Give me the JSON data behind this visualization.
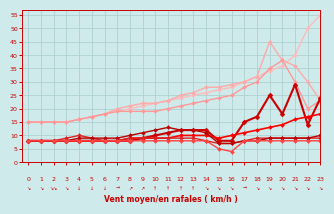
{
  "xlabel": "Vent moyen/en rafales ( km/h )",
  "xlim": [
    -0.5,
    23
  ],
  "ylim": [
    0,
    57
  ],
  "yticks": [
    0,
    5,
    10,
    15,
    20,
    25,
    30,
    35,
    40,
    45,
    50,
    55
  ],
  "xticks": [
    0,
    1,
    2,
    3,
    4,
    5,
    6,
    7,
    8,
    9,
    10,
    11,
    12,
    13,
    14,
    15,
    16,
    17,
    18,
    19,
    20,
    21,
    22,
    23
  ],
  "background_color": "#ceeaea",
  "lines": [
    {
      "comment": "lightest pink - nearly straight diagonal from ~15 to 55",
      "x": [
        0,
        1,
        2,
        3,
        4,
        5,
        6,
        7,
        8,
        9,
        10,
        11,
        12,
        13,
        14,
        15,
        16,
        17,
        18,
        19,
        20,
        21,
        22,
        23
      ],
      "y": [
        15,
        15,
        15,
        15,
        16,
        17,
        18,
        19,
        20,
        21,
        22,
        23,
        24,
        25,
        26,
        27,
        28,
        30,
        32,
        34,
        36,
        40,
        50,
        55
      ],
      "color": "#ffbbbb",
      "lw": 1.0,
      "marker": "D",
      "ms": 2
    },
    {
      "comment": "light pink - diagonal going up to ~45 with peak at 21",
      "x": [
        0,
        1,
        2,
        3,
        4,
        5,
        6,
        7,
        8,
        9,
        10,
        11,
        12,
        13,
        14,
        15,
        16,
        17,
        18,
        19,
        20,
        21,
        22,
        23
      ],
      "y": [
        15,
        15,
        15,
        15,
        16,
        17,
        18,
        20,
        21,
        22,
        22,
        23,
        25,
        26,
        28,
        28,
        29,
        30,
        32,
        45,
        38,
        36,
        30,
        23
      ],
      "color": "#ffaaaa",
      "lw": 1.0,
      "marker": "D",
      "ms": 2
    },
    {
      "comment": "medium pink - up to 38 then back down",
      "x": [
        0,
        1,
        2,
        3,
        4,
        5,
        6,
        7,
        8,
        9,
        10,
        11,
        12,
        13,
        14,
        15,
        16,
        17,
        18,
        19,
        20,
        21,
        22,
        23
      ],
      "y": [
        15,
        15,
        15,
        15,
        16,
        17,
        18,
        19,
        19,
        19,
        19,
        20,
        21,
        22,
        23,
        24,
        25,
        28,
        30,
        35,
        38,
        30,
        20,
        23
      ],
      "color": "#ff9999",
      "lw": 1.0,
      "marker": "D",
      "ms": 2
    },
    {
      "comment": "dark red - main bold line goes up steeply",
      "x": [
        0,
        1,
        2,
        3,
        4,
        5,
        6,
        7,
        8,
        9,
        10,
        11,
        12,
        13,
        14,
        15,
        16,
        17,
        18,
        19,
        20,
        21,
        22,
        23
      ],
      "y": [
        8,
        8,
        8,
        8,
        8,
        8,
        8,
        8,
        8,
        9,
        10,
        11,
        12,
        12,
        12,
        8,
        8,
        15,
        17,
        25,
        18,
        29,
        14,
        24
      ],
      "color": "#cc0000",
      "lw": 1.5,
      "marker": "D",
      "ms": 2.5
    },
    {
      "comment": "red line - nearly flat with slight rise",
      "x": [
        0,
        1,
        2,
        3,
        4,
        5,
        6,
        7,
        8,
        9,
        10,
        11,
        12,
        13,
        14,
        15,
        16,
        17,
        18,
        19,
        20,
        21,
        22,
        23
      ],
      "y": [
        8,
        8,
        8,
        8,
        8,
        8,
        8,
        8,
        9,
        9,
        9,
        9,
        10,
        10,
        10,
        9,
        10,
        11,
        12,
        13,
        14,
        16,
        17,
        18
      ],
      "color": "#ff0000",
      "lw": 1.2,
      "marker": "D",
      "ms": 2
    },
    {
      "comment": "darker red - dips down then up",
      "x": [
        0,
        1,
        2,
        3,
        4,
        5,
        6,
        7,
        8,
        9,
        10,
        11,
        12,
        13,
        14,
        15,
        16,
        17,
        18,
        19,
        20,
        21,
        22,
        23
      ],
      "y": [
        8,
        8,
        8,
        9,
        10,
        9,
        8,
        8,
        9,
        9,
        9,
        9,
        9,
        9,
        8,
        7,
        7,
        8,
        9,
        9,
        9,
        9,
        9,
        9
      ],
      "color": "#dd2222",
      "lw": 1.0,
      "marker": "D",
      "ms": 2
    },
    {
      "comment": "medium red - slight hump",
      "x": [
        0,
        1,
        2,
        3,
        4,
        5,
        6,
        7,
        8,
        9,
        10,
        11,
        12,
        13,
        14,
        15,
        16,
        17,
        18,
        19,
        20,
        21,
        22,
        23
      ],
      "y": [
        8,
        8,
        8,
        8,
        9,
        9,
        9,
        9,
        10,
        11,
        12,
        13,
        12,
        12,
        11,
        7,
        7,
        8,
        8,
        9,
        9,
        9,
        9,
        10
      ],
      "color": "#bb0000",
      "lw": 1.0,
      "marker": "D",
      "ms": 2
    },
    {
      "comment": "bright red - V shape dip at 15-16",
      "x": [
        0,
        1,
        2,
        3,
        4,
        5,
        6,
        7,
        8,
        9,
        10,
        11,
        12,
        13,
        14,
        15,
        16,
        17,
        18,
        19,
        20,
        21,
        22,
        23
      ],
      "y": [
        8,
        8,
        8,
        8,
        8,
        8,
        8,
        8,
        8,
        8,
        8,
        8,
        8,
        8,
        8,
        5,
        4,
        8,
        8,
        8,
        8,
        8,
        8,
        8
      ],
      "color": "#ff4444",
      "lw": 1.0,
      "marker": "D",
      "ms": 2
    }
  ]
}
